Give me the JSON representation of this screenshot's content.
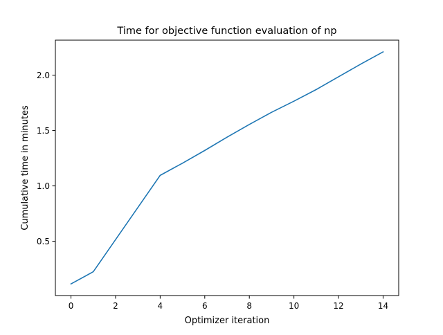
{
  "chart_data": {
    "type": "line",
    "title": "Time for objective function evaluation of np",
    "xlabel": "Optimizer iteration",
    "ylabel": "Cumulative time in minutes",
    "x": [
      0,
      1,
      2,
      3,
      4,
      5,
      6,
      7,
      8,
      9,
      10,
      11,
      12,
      13,
      14
    ],
    "series": [
      {
        "name": "Cumulative time",
        "color": "#1f77b4",
        "values": [
          0.115,
          0.225,
          0.515,
          0.805,
          1.095,
          1.205,
          1.32,
          1.44,
          1.555,
          1.665,
          1.765,
          1.87,
          1.985,
          2.1,
          2.21
        ]
      }
    ],
    "xlim": [
      -0.7,
      14.7
    ],
    "ylim": [
      0.01,
      2.316
    ],
    "xticks": [
      0,
      2,
      4,
      6,
      8,
      10,
      12,
      14
    ],
    "xtick_labels": [
      "0",
      "2",
      "4",
      "6",
      "8",
      "10",
      "12",
      "14"
    ],
    "yticks": [
      0.5,
      1.0,
      1.5,
      2.0
    ],
    "ytick_labels": [
      "0.5",
      "1.0",
      "1.5",
      "2.0"
    ],
    "grid": false,
    "legend": "none"
  }
}
